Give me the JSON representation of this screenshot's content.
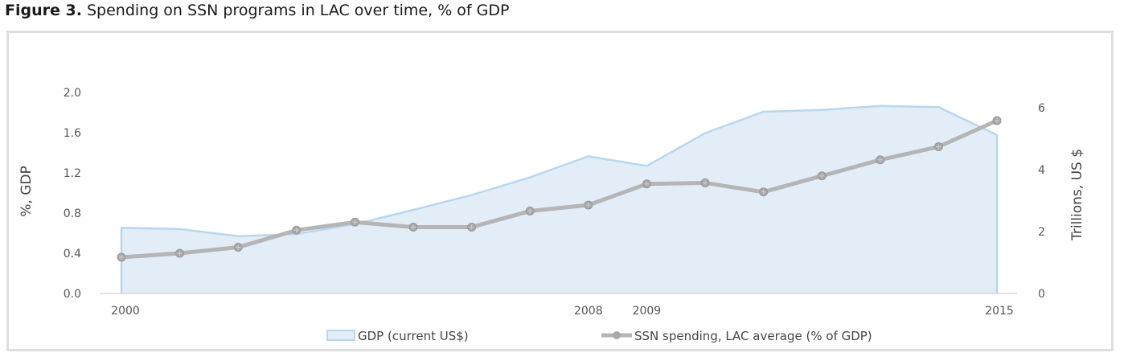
{
  "figure": {
    "label": "Figure 3.",
    "caption": " Spending on SSN programs in LAC over time, % of GDP"
  },
  "chart_data": {
    "type": "line",
    "x": [
      2000,
      2001,
      2002,
      2003,
      2004,
      2005,
      2006,
      2007,
      2008,
      2009,
      2010,
      2011,
      2012,
      2013,
      2014,
      2015
    ],
    "x_tick_labels": [
      "2000",
      "2008",
      "2009",
      "2015"
    ],
    "y_left_label": "%, GDP",
    "y_left_ticks": [
      "0.0",
      "0.4",
      "0.8",
      "1.2",
      "1.6",
      "2.0"
    ],
    "y_left_lim": [
      0,
      2.0
    ],
    "y_right_label": "Trillions, US $",
    "y_right_ticks": [
      "0",
      "2",
      "4",
      "6"
    ],
    "y_right_lim": [
      0,
      6.5
    ],
    "series": [
      {
        "name": "GDP (current US$)",
        "type": "area",
        "axis": "right",
        "color": "#b8d7ee",
        "fill": "#e3edf8",
        "values": [
          2.12,
          2.08,
          1.85,
          1.92,
          2.24,
          2.7,
          3.18,
          3.75,
          4.43,
          4.12,
          5.18,
          5.87,
          5.93,
          6.06,
          6.02,
          5.12
        ]
      },
      {
        "name": "SSN spending, LAC average (% of GDP)",
        "type": "line",
        "axis": "left",
        "color": "#b5b5b5",
        "values": [
          0.36,
          0.4,
          0.46,
          0.63,
          0.71,
          0.66,
          0.66,
          0.82,
          0.88,
          1.09,
          1.1,
          1.01,
          1.17,
          1.33,
          1.46,
          1.72
        ]
      }
    ],
    "legend": "bottom-center",
    "grid": false
  }
}
